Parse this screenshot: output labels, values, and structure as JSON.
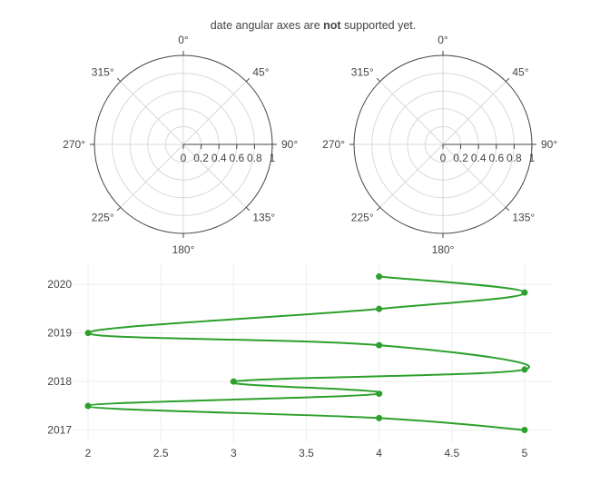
{
  "title": {
    "prefix": "date angular axes are ",
    "bold": "not",
    "suffix": " supported yet."
  },
  "colors": {
    "series": "#2ca02c",
    "grid": "#d9d9d9",
    "axis": "#444444",
    "text": "#444444",
    "background": "#ffffff"
  },
  "chart_data": [
    {
      "type": "polar",
      "angular_ticks": [
        "0°",
        "45°",
        "90°",
        "135°",
        "180°",
        "225°",
        "270°",
        "315°"
      ],
      "radial_ticks": [
        "0",
        "0.2",
        "0.4",
        "0.6",
        "0.8",
        "1"
      ],
      "radial_range": [
        0,
        1
      ],
      "series": []
    },
    {
      "type": "polar",
      "angular_ticks": [
        "0°",
        "45°",
        "90°",
        "135°",
        "180°",
        "225°",
        "270°",
        "315°"
      ],
      "radial_ticks": [
        "0",
        "0.2",
        "0.4",
        "0.6",
        "0.8",
        "1"
      ],
      "radial_range": [
        0,
        1
      ],
      "series": []
    },
    {
      "type": "line",
      "mode": "lines+markers",
      "line_shape": "spline",
      "x": [
        5,
        4,
        2,
        4,
        3,
        5,
        4,
        2,
        4,
        5,
        4
      ],
      "y": [
        "2017-01-01",
        "2017-04-01",
        "2017-07-01",
        "2017-10-01",
        "2018-01-01",
        "2018-04-01",
        "2018-10-01",
        "2019-01-01",
        "2019-07-01",
        "2019-11-01",
        "2020-03-01"
      ],
      "x_range": [
        1.9,
        5.2
      ],
      "y_range": [
        "2016-10-01",
        "2020-06-01"
      ],
      "x_ticks": [
        "2",
        "2.5",
        "3",
        "3.5",
        "4",
        "4.5",
        "5"
      ],
      "y_ticks": [
        "2017",
        "2018",
        "2019",
        "2020"
      ],
      "grid": true
    }
  ]
}
